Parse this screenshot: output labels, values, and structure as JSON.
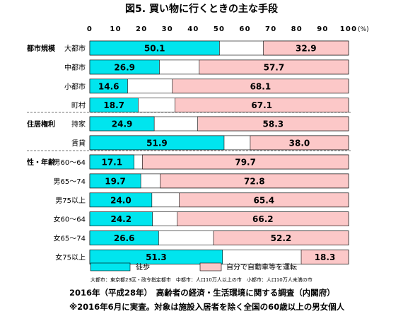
{
  "chart_data": {
    "type": "bar",
    "orientation": "horizontal",
    "stacked": true,
    "title": "図5. 買い物に行くときの主な手段",
    "unit": "(%)",
    "xlim": [
      0,
      100
    ],
    "xticks": [
      "0",
      "10",
      "20",
      "30",
      "40",
      "50",
      "60",
      "70",
      "80",
      "90",
      "100"
    ],
    "groups": [
      {
        "label": "都市規模",
        "rows": [
          {
            "label": "大都市",
            "walk": 50.1,
            "drive": 32.9
          },
          {
            "label": "中都市",
            "walk": 26.9,
            "drive": 57.7
          },
          {
            "label": "小都市",
            "walk": 14.6,
            "drive": 68.1
          },
          {
            "label": "町村",
            "walk": 18.7,
            "drive": 67.1
          }
        ]
      },
      {
        "label": "住居権利",
        "rows": [
          {
            "label": "持家",
            "walk": 24.9,
            "drive": 58.3
          },
          {
            "label": "賃貸",
            "walk": 51.9,
            "drive": 38.0
          }
        ]
      },
      {
        "label": "性・年齢",
        "rows": [
          {
            "label": "男60～64",
            "walk": 17.1,
            "drive": 79.7
          },
          {
            "label": "男65～74",
            "walk": 19.7,
            "drive": 72.8
          },
          {
            "label": "男75以上",
            "walk": 24.0,
            "drive": 65.4
          },
          {
            "label": "女60～64",
            "walk": 24.2,
            "drive": 66.2
          },
          {
            "label": "女65～74",
            "walk": 26.6,
            "drive": 52.2
          },
          {
            "label": "女75以上",
            "walk": 51.3,
            "drive": 18.3
          }
        ]
      }
    ],
    "series": [
      {
        "name": "徒歩",
        "key": "walk",
        "color": "#00e5ee"
      },
      {
        "name": "自分で自動車等を運転",
        "key": "drive",
        "color": "#fcc8c8"
      }
    ],
    "note": "大都市：東京都23区・政令指定都市　中都市：人口10万人以上の市　小都市：人口10万人未満の市",
    "footer": [
      "2016年（平成28年）　高齢者の経済・生活環境に関する調査（内閣府）",
      "※2016年6月に実査。対象は施設入居者を除く全国の60歳以上の男女個人"
    ]
  }
}
